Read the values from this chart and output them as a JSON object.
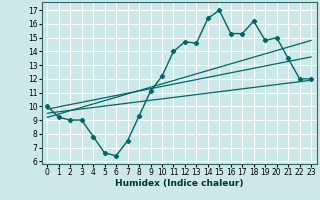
{
  "xlabel": "Humidex (Indice chaleur)",
  "ylabel": "",
  "bg_color": "#cce8e8",
  "grid_color": "#ffffff",
  "line_color": "#006666",
  "xlim": [
    -0.5,
    23.5
  ],
  "ylim": [
    5.8,
    17.6
  ],
  "xticks": [
    0,
    1,
    2,
    3,
    4,
    5,
    6,
    7,
    8,
    9,
    10,
    11,
    12,
    13,
    14,
    15,
    16,
    17,
    18,
    19,
    20,
    21,
    22,
    23
  ],
  "yticks": [
    6,
    7,
    8,
    9,
    10,
    11,
    12,
    13,
    14,
    15,
    16,
    17
  ],
  "main_line_x": [
    0,
    1,
    2,
    3,
    4,
    5,
    6,
    7,
    8,
    9,
    10,
    11,
    12,
    13,
    14,
    15,
    16,
    17,
    18,
    19,
    20,
    21,
    22,
    23
  ],
  "main_line_y": [
    10.0,
    9.2,
    9.0,
    9.0,
    7.8,
    6.6,
    6.4,
    7.5,
    9.3,
    11.1,
    12.2,
    14.0,
    14.7,
    14.6,
    16.4,
    17.0,
    15.3,
    15.3,
    16.2,
    14.8,
    15.0,
    13.5,
    12.0,
    12.0
  ],
  "line2_x": [
    0,
    23
  ],
  "line2_y": [
    9.5,
    11.9
  ],
  "line3_x": [
    0,
    23
  ],
  "line3_y": [
    9.8,
    13.6
  ],
  "line4_x": [
    0,
    23
  ],
  "line4_y": [
    9.2,
    14.8
  ]
}
